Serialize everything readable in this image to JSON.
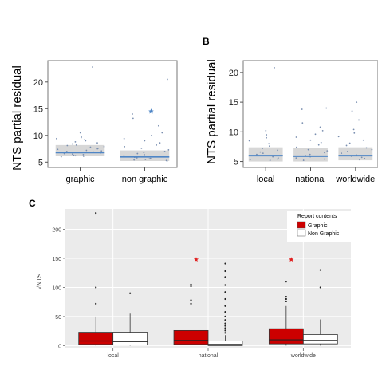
{
  "panels": {
    "b_label": "B",
    "c_label": "C"
  },
  "chart_data": [
    {
      "type": "scatter",
      "panel": "A",
      "ylabel": "NTS partial residual",
      "xlabel": "",
      "categories": [
        "graphic",
        "non graphic"
      ],
      "ylim": [
        4,
        24
      ],
      "yticks": [
        5,
        10,
        15,
        20
      ],
      "fit_values": [
        6.8,
        6.0
      ],
      "ci_low": [
        6.2,
        5.2
      ],
      "ci_high": [
        8.2,
        7.2
      ],
      "outlier_star": {
        "category": "non graphic",
        "y": 14.5
      },
      "points": {
        "graphic": [
          22.8,
          10.5,
          9.8,
          9.6,
          9.4,
          9.2,
          9.0,
          8.8,
          8.6,
          8.4,
          8.2,
          8.1,
          7.9,
          7.8,
          7.6,
          7.5,
          7.4,
          7.2,
          7.1,
          7.0,
          6.9,
          6.8,
          6.7,
          6.6,
          6.5,
          6.4,
          6.3,
          6.2,
          6.1,
          6.0
        ],
        "non graphic": [
          20.5,
          14.0,
          13.2,
          11.8,
          10.5,
          10.0,
          9.4,
          9.0,
          8.6,
          8.2,
          7.9,
          7.6,
          7.3,
          7.0,
          6.8,
          6.6,
          6.4,
          6.2,
          6.0,
          5.9,
          5.8,
          5.7,
          5.6,
          5.5,
          5.4,
          5.3,
          5.2
        ]
      },
      "colors": {
        "fit": "#4f86c6",
        "band": "#d3d3d3",
        "points": "#7a8fb0",
        "star": "#4f86c6"
      },
      "grid": false
    },
    {
      "type": "scatter",
      "panel": "B",
      "ylabel": "NTS partial residual",
      "xlabel": "",
      "categories": [
        "local",
        "national",
        "worldwide"
      ],
      "ylim": [
        4,
        22
      ],
      "yticks": [
        5,
        10,
        15,
        20
      ],
      "fit_values": [
        6.0,
        5.9,
        6.0
      ],
      "ci_low": [
        5.0,
        5.0,
        5.2
      ],
      "ci_high": [
        7.4,
        7.3,
        7.4
      ],
      "points": {
        "local": [
          20.8,
          10.2,
          9.5,
          9.0,
          8.5,
          8.0,
          7.6,
          7.2,
          6.9,
          6.6,
          6.4,
          6.2,
          6.0,
          5.8,
          5.6,
          5.4,
          5.3,
          5.2
        ],
        "national": [
          14.0,
          13.8,
          11.5,
          10.8,
          10.2,
          9.6,
          9.1,
          8.6,
          8.2,
          7.8,
          7.4,
          7.0,
          6.8,
          6.5,
          6.2,
          6.0,
          5.8,
          5.6,
          5.4,
          5.2
        ],
        "worldwide": [
          15.0,
          13.5,
          12.0,
          10.4,
          9.8,
          9.2,
          8.6,
          8.1,
          7.7,
          7.3,
          7.0,
          6.7,
          6.4,
          6.1,
          5.9,
          5.7,
          5.5,
          5.3
        ]
      },
      "colors": {
        "fit": "#4f86c6",
        "band": "#d3d3d3",
        "points": "#7a8fb0"
      },
      "grid": false
    },
    {
      "type": "box",
      "panel": "C",
      "ylabel": "√NTS",
      "xlabel": "",
      "categories": [
        "local",
        "national",
        "worldwide"
      ],
      "ylim": [
        -5,
        235
      ],
      "yticks": [
        0,
        50,
        100,
        150,
        200
      ],
      "legend": {
        "title": "Report contents",
        "placement": "top-right",
        "entries": [
          {
            "label": "Graphic",
            "color": "#cc0000"
          },
          {
            "label": "Non Graphic",
            "color": "#ffffff"
          }
        ]
      },
      "series": [
        {
          "name": "Graphic",
          "color": "#cc0000",
          "boxes": [
            {
              "category": "local",
              "q1": 2,
              "median": 8,
              "q3": 23,
              "whisker_low": 0,
              "whisker_high": 50,
              "outliers": [
                228,
                100,
                72
              ]
            },
            {
              "category": "national",
              "q1": 2,
              "median": 9,
              "q3": 26,
              "whisker_low": 0,
              "whisker_high": 62,
              "outliers": [
                105,
                102,
                78,
                72
              ]
            },
            {
              "category": "worldwide",
              "q1": 3,
              "median": 10,
              "q3": 29,
              "whisker_low": 0,
              "whisker_high": 68,
              "outliers": [
                110,
                84,
                80,
                76
              ]
            }
          ]
        },
        {
          "name": "Non Graphic",
          "color": "#ffffff",
          "boxes": [
            {
              "category": "local",
              "q1": 1,
              "median": 7,
              "q3": 23,
              "whisker_low": 0,
              "whisker_high": 55,
              "outliers": [
                90
              ]
            },
            {
              "category": "national",
              "q1": 0,
              "median": 2,
              "q3": 8,
              "whisker_low": 0,
              "whisker_high": 18,
              "outliers": [
                141,
                128,
                118,
                104,
                92,
                80,
                68,
                58,
                50,
                44,
                38,
                34,
                30,
                26,
                22
              ]
            },
            {
              "category": "worldwide",
              "q1": 3,
              "median": 9,
              "q3": 19,
              "whisker_low": 0,
              "whisker_high": 45,
              "outliers": [
                130,
                100
              ]
            }
          ]
        }
      ],
      "stars": [
        {
          "category": "national",
          "y": 148,
          "color": "#e02020"
        },
        {
          "category": "worldwide",
          "y": 148,
          "color": "#e02020"
        }
      ],
      "colors": {
        "panel_bg": "#ebebeb",
        "gridline": "#ffffff"
      },
      "grid": true
    }
  ]
}
